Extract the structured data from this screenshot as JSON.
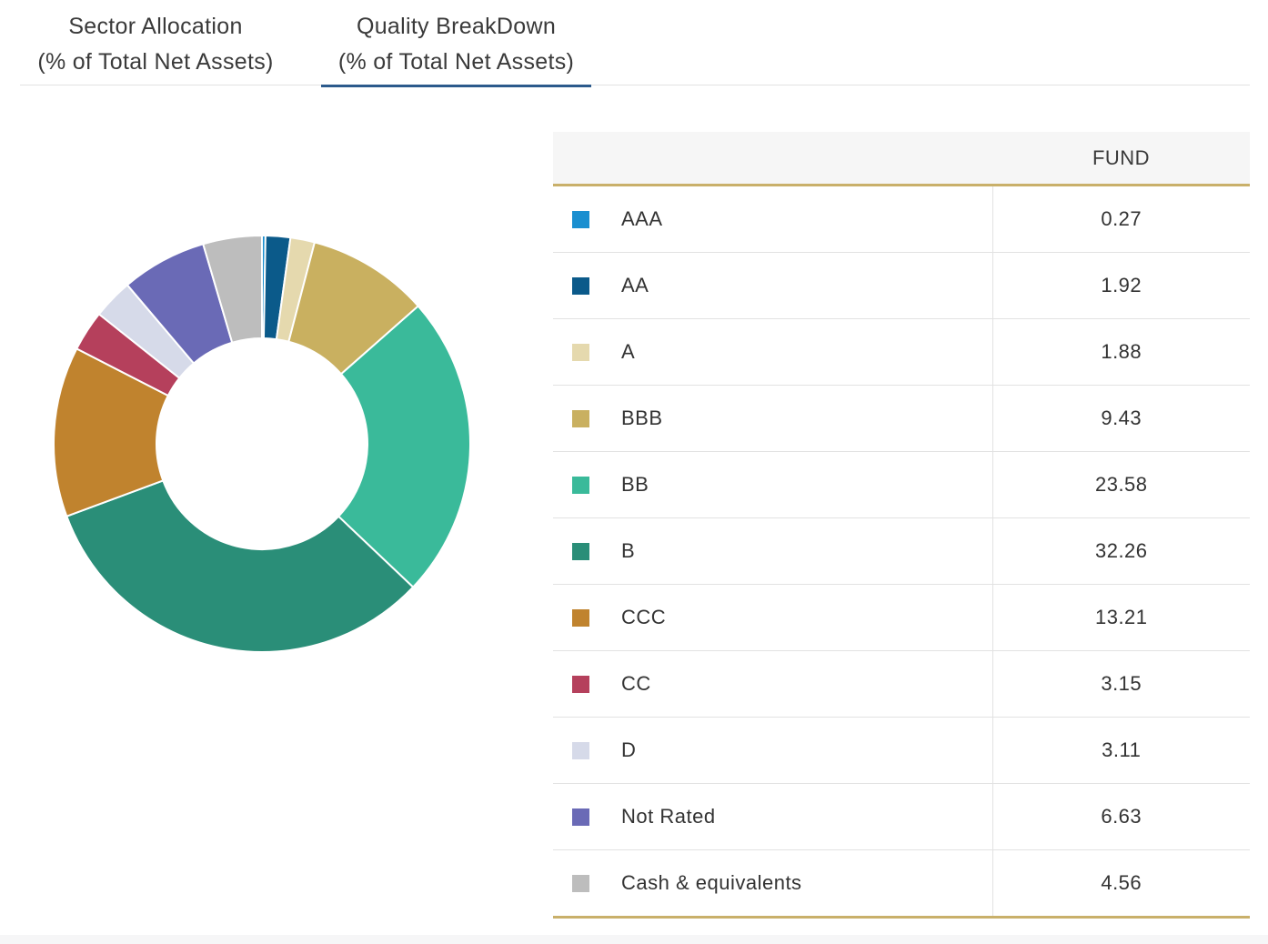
{
  "tabs": [
    {
      "line1": "Sector Allocation",
      "line2": "(% of Total Net Assets)",
      "active": false
    },
    {
      "line1": "Quality BreakDown",
      "line2": "(% of Total Net Assets)",
      "active": true
    }
  ],
  "table": {
    "header_label": "",
    "header_fund": "FUND"
  },
  "chart_data": {
    "type": "pie",
    "variant": "donut",
    "title": "Quality BreakDown (% of Total Net Assets)",
    "categories": [
      "AAA",
      "AA",
      "A",
      "BBB",
      "BB",
      "B",
      "CCC",
      "CC",
      "D",
      "Not Rated",
      "Cash & equivalents"
    ],
    "values": [
      0.27,
      1.92,
      1.88,
      9.43,
      23.58,
      32.26,
      13.21,
      3.15,
      3.11,
      6.63,
      4.56
    ],
    "display_values": [
      "0.27",
      "1.92",
      "1.88",
      "9.43",
      "23.58",
      "32.26",
      "13.21",
      "3.15",
      "3.11",
      "6.63",
      "4.56"
    ],
    "colors": [
      "#1a8fd0",
      "#0b5a8a",
      "#e5d9ae",
      "#c9b060",
      "#3aba9a",
      "#2a8e78",
      "#c0832e",
      "#b5405c",
      "#d6dae9",
      "#6a6ab6",
      "#bdbdbd"
    ],
    "legend": "table-right"
  }
}
